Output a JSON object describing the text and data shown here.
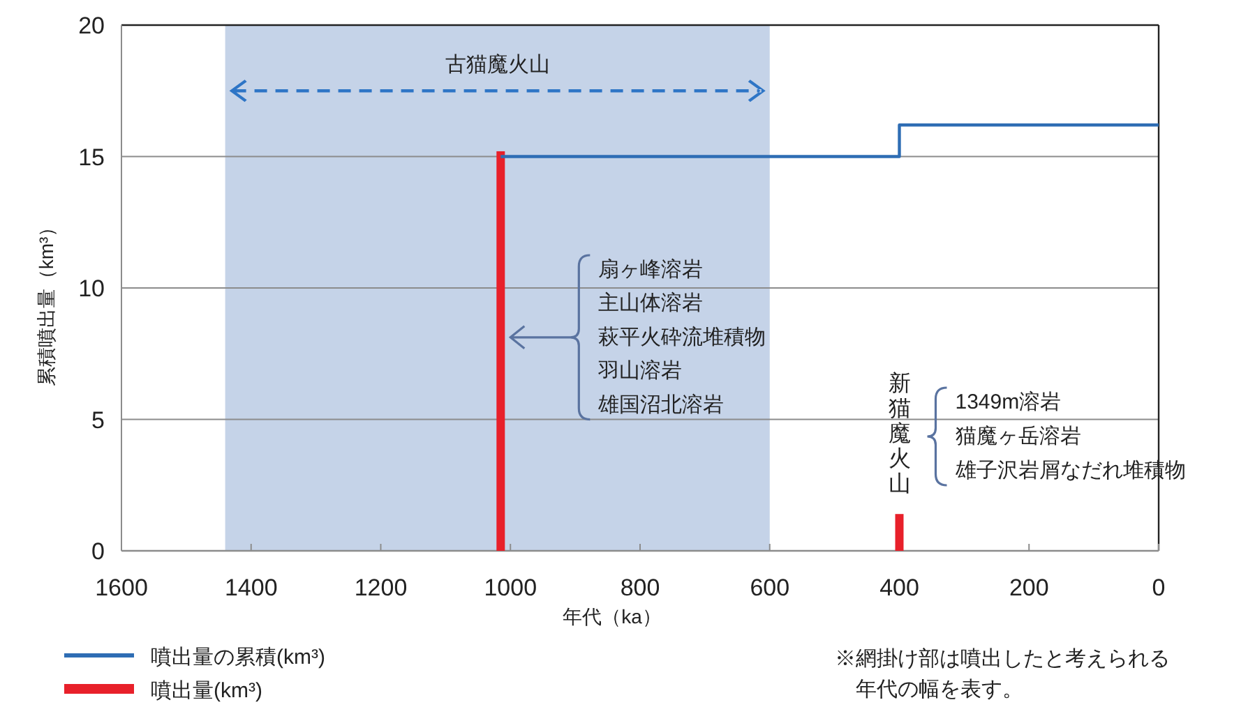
{
  "chart_data": {
    "type": "step",
    "xlabel": "年代（ka）",
    "ylabel": "累積噴出量（km³）",
    "xlim": [
      1600,
      0
    ],
    "ylim": [
      0,
      20
    ],
    "xticks": [
      1600,
      1400,
      1200,
      1000,
      800,
      600,
      400,
      200,
      0
    ],
    "yticks": [
      0,
      5,
      10,
      15,
      20
    ],
    "grid": "y",
    "legend": "bottom left",
    "series": [
      {
        "name": "噴出量の累積(km³)",
        "color": "#2e6db4",
        "x": [
          1015,
          400,
          0
        ],
        "values": [
          15.0,
          16.2,
          16.2
        ]
      },
      {
        "name": "噴出量(km³)",
        "type": "bar",
        "color": "#e8202a",
        "x": [
          1015,
          400
        ],
        "values": [
          15.2,
          1.4
        ]
      }
    ],
    "bands": [
      {
        "axis": "x",
        "from": 1440,
        "to": 600,
        "label": "古猫魔火山",
        "color": "#c5d3e8"
      }
    ],
    "annotations": [
      "新猫魔火山",
      "扇ヶ峰溶岩",
      "主山体溶岩",
      "萩平火砕流堆積物",
      "羽山溶岩",
      "雄国沼北溶岩",
      "1349m溶岩",
      "猫魔ヶ岳溶岩",
      "雄子沢岩屑なだれ堆積物",
      "※網掛け部は噴出したと考えられる年代の幅を表す。"
    ]
  }
}
